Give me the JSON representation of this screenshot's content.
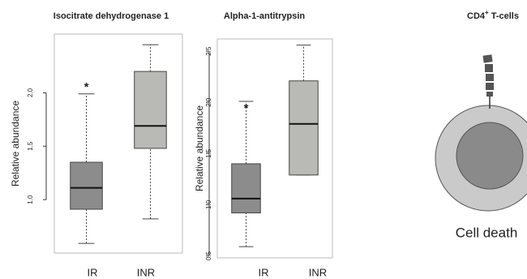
{
  "chart_data": [
    {
      "type": "box",
      "title": "Isocitrate dehydrogenase 1",
      "ylabel": "Relative abundance",
      "categories": [
        "IR",
        "INR"
      ],
      "colors": [
        "#8c8c8c",
        "#b9b9b5"
      ],
      "boxes": [
        {
          "min": 0.59,
          "q1": 0.91,
          "median": 1.11,
          "q3": 1.35,
          "max": 1.99
        },
        {
          "min": 0.82,
          "q1": 1.48,
          "median": 1.69,
          "q3": 2.2,
          "max": 2.45
        }
      ],
      "annotations": [
        {
          "text": "*",
          "x": "IR",
          "y": 2.07
        }
      ],
      "ylim": [
        0.5,
        2.55
      ],
      "yticks": [
        {
          "value": 1,
          "label": "1.0"
        },
        {
          "value": 1.5,
          "label": "1.5"
        },
        {
          "value": 2,
          "label": "2.0"
        }
      ]
    },
    {
      "type": "box",
      "title": "Alpha-1-antitrypsin",
      "ylabel": "Relative abundance",
      "categories": [
        "IR",
        "INR"
      ],
      "colors": [
        "#8c8c8c",
        "#b9b9b5"
      ],
      "boxes": [
        {
          "min": 0.59,
          "q1": 0.92,
          "median": 1.06,
          "q3": 1.4,
          "max": 2.01
        },
        {
          "min": 1.29,
          "q1": 1.29,
          "median": 1.79,
          "q3": 2.21,
          "max": 2.56
        }
      ],
      "annotations": [
        {
          "text": "*",
          "x": "IR",
          "y": 1.96
        }
      ],
      "ylim": [
        0.48,
        2.62
      ],
      "yticks": [
        0.5,
        {
          "value": 1,
          "label": "1.0"
        },
        1.5,
        {
          "value": 2,
          "label": "2.0"
        },
        2.5
      ]
    }
  ],
  "diagram": {
    "title": "CD4",
    "title_sup": "+",
    "title_rest": " T-cells",
    "label": "Cell death"
  }
}
